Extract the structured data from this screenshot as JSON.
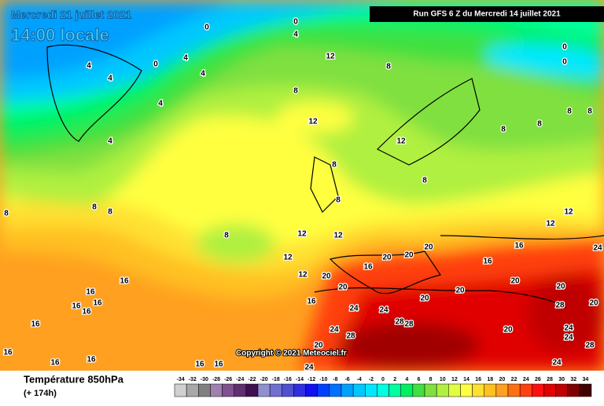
{
  "header": {
    "date": "Mercredi 21 juillet 2021",
    "time": "14:00 locale",
    "run": "Run GFS 6 Z du Mercredi 14 juillet 2021"
  },
  "map": {
    "copyright": "Copyright © 2021 Meteociel.fr",
    "contour_labels": [
      "0",
      "0",
      "4",
      "4",
      "4",
      "0",
      "4",
      "4",
      "4",
      "4",
      "8",
      "8",
      "8",
      "8",
      "8",
      "12",
      "8",
      "12",
      "12",
      "8",
      "8",
      "8",
      "8",
      "8",
      "8",
      "8",
      "12",
      "12",
      "12",
      "12",
      "12",
      "12",
      "20",
      "16",
      "20",
      "20",
      "20",
      "16",
      "16",
      "20",
      "20",
      "28",
      "24",
      "20",
      "24",
      "28",
      "28",
      "24",
      "20",
      "24",
      "28",
      "20",
      "20",
      "20",
      "24",
      "24",
      "28",
      "24",
      "20",
      "24",
      "16",
      "16",
      "16",
      "16",
      "16",
      "16",
      "16",
      "16",
      "16",
      "16",
      "16",
      "16",
      "0",
      "0"
    ]
  },
  "legend": {
    "title": "Température 850hPa",
    "lead": "(+ 174h)",
    "ticks": [
      -34,
      -32,
      -30,
      -28,
      -26,
      -24,
      -22,
      -20,
      -18,
      -16,
      -14,
      -12,
      -10,
      -8,
      -6,
      -4,
      -2,
      0,
      2,
      4,
      6,
      8,
      10,
      12,
      14,
      16,
      18,
      20,
      22,
      24,
      26,
      28,
      30,
      32,
      34
    ],
    "colors": [
      "#d0d0d0",
      "#a8a8a8",
      "#808080",
      "#a080b0",
      "#805090",
      "#603070",
      "#401050",
      "#9090d0",
      "#7070d0",
      "#5050d0",
      "#3030e0",
      "#1010f0",
      "#0040ff",
      "#0070ff",
      "#00a0ff",
      "#00c8ff",
      "#00e8ff",
      "#00ffe0",
      "#00ffa0",
      "#00f060",
      "#40e040",
      "#80e040",
      "#b0f040",
      "#e0ff40",
      "#ffff40",
      "#ffe030",
      "#ffc020",
      "#ffa020",
      "#ff7010",
      "#ff4010",
      "#ff1010",
      "#e00000",
      "#c00000",
      "#800000",
      "#400000"
    ]
  }
}
